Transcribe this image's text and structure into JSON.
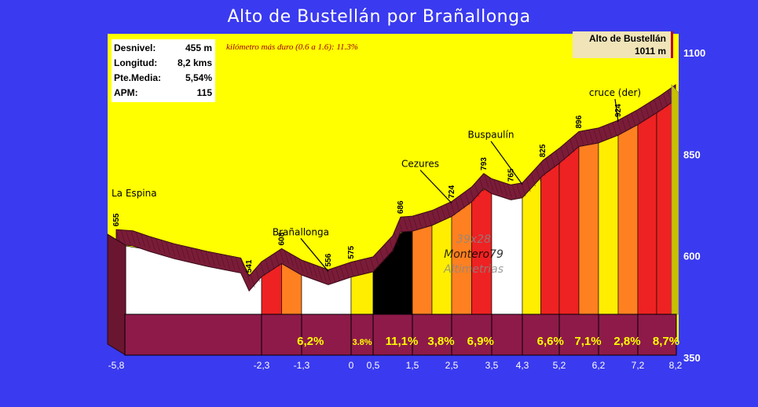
{
  "title": "Alto de Bustellán por Brañallonga",
  "stats": [
    {
      "label": "Desnivel:",
      "value": "455 m"
    },
    {
      "label": "Longitud:",
      "value": "8,2 kms"
    },
    {
      "label": "Pte.Media:",
      "value": "5,54%"
    },
    {
      "label": "APM:",
      "value": "115"
    }
  ],
  "hardest_km": "kilómetro más duro (0.6 a 1.6):   11.3%",
  "summit": {
    "name": "Alto de Bustellán",
    "elevation": "1011 m"
  },
  "watermark": [
    "39x28",
    "Montero79",
    "Altimetrias"
  ],
  "colors": {
    "background": "#3a3af0",
    "plot_area": "#ffff00",
    "road": "#7a1c38",
    "base_band": "#8e1a4a"
  },
  "chart_data": {
    "type": "area",
    "title": "Alto de Bustellán por Brañallonga",
    "xlabel": "",
    "ylabel": "",
    "x_ticks": [
      "-5,8",
      "-2,3",
      "-1,3",
      "0",
      "0,5",
      "1,5",
      "2,5",
      "3,5",
      "4,3",
      "5,2",
      "6,2",
      "7,2",
      "8,2"
    ],
    "y_ticks": [
      "350",
      "600",
      "850",
      "1100"
    ],
    "ylim": [
      350,
      1100
    ],
    "profile": [
      {
        "x": -5.8,
        "elev": 655
      },
      {
        "x": -5.4,
        "elev": 652
      },
      {
        "x": -5.0,
        "elev": 638
      },
      {
        "x": -4.4,
        "elev": 620
      },
      {
        "x": -3.6,
        "elev": 601
      },
      {
        "x": -2.8,
        "elev": 585
      },
      {
        "x": -2.6,
        "elev": 541
      },
      {
        "x": -2.3,
        "elev": 576
      },
      {
        "x": -1.8,
        "elev": 608
      },
      {
        "x": -1.3,
        "elev": 580
      },
      {
        "x": -0.6,
        "elev": 556
      },
      {
        "x": 0.0,
        "elev": 575
      },
      {
        "x": 0.5,
        "elev": 588
      },
      {
        "x": 1.0,
        "elev": 640
      },
      {
        "x": 1.2,
        "elev": 686
      },
      {
        "x": 1.5,
        "elev": 688
      },
      {
        "x": 2.0,
        "elev": 702
      },
      {
        "x": 2.5,
        "elev": 724
      },
      {
        "x": 3.0,
        "elev": 760
      },
      {
        "x": 3.3,
        "elev": 793
      },
      {
        "x": 3.5,
        "elev": 780
      },
      {
        "x": 4.0,
        "elev": 765
      },
      {
        "x": 4.3,
        "elev": 770
      },
      {
        "x": 4.8,
        "elev": 825
      },
      {
        "x": 5.2,
        "elev": 855
      },
      {
        "x": 5.7,
        "elev": 896
      },
      {
        "x": 6.2,
        "elev": 905
      },
      {
        "x": 6.7,
        "elev": 924
      },
      {
        "x": 7.2,
        "elev": 950
      },
      {
        "x": 7.8,
        "elev": 985
      },
      {
        "x": 8.2,
        "elev": 1011
      }
    ],
    "point_labels": [
      {
        "x": -5.8,
        "text": "655"
      },
      {
        "x": -2.6,
        "text": "541"
      },
      {
        "x": -1.8,
        "text": "608"
      },
      {
        "x": -0.6,
        "text": "556"
      },
      {
        "x": 0.0,
        "text": "575"
      },
      {
        "x": 1.2,
        "text": "686"
      },
      {
        "x": 2.5,
        "text": "724"
      },
      {
        "x": 3.3,
        "text": "793"
      },
      {
        "x": 4.0,
        "text": "765"
      },
      {
        "x": 4.8,
        "text": "825"
      },
      {
        "x": 5.7,
        "text": "896"
      },
      {
        "x": 6.7,
        "text": "924"
      }
    ],
    "segments": [
      {
        "x0": -5.8,
        "x1": -2.3,
        "grade": "",
        "color": "#ffffff"
      },
      {
        "x0": -2.3,
        "x1": -1.8,
        "grade": "",
        "color": "#ee2222"
      },
      {
        "x0": -1.8,
        "x1": -1.3,
        "grade": "6,2%",
        "color": "#ff8020"
      },
      {
        "x0": -1.3,
        "x1": 0.0,
        "grade": "",
        "color": "#ffffff"
      },
      {
        "x0": 0.0,
        "x1": 0.5,
        "grade": "3.8%",
        "color": "#ffee00"
      },
      {
        "x0": 0.5,
        "x1": 1.0,
        "grade": "11,1%",
        "color": "#000000"
      },
      {
        "x0": 1.0,
        "x1": 1.5,
        "grade": "",
        "color": "#000000"
      },
      {
        "x0": 1.5,
        "x1": 2.0,
        "grade": "3,8%",
        "color": "#ff8020"
      },
      {
        "x0": 2.0,
        "x1": 2.5,
        "grade": "",
        "color": "#ffee00"
      },
      {
        "x0": 2.5,
        "x1": 3.0,
        "grade": "6,9%",
        "color": "#ff8020"
      },
      {
        "x0": 3.0,
        "x1": 3.5,
        "grade": "",
        "color": "#ee2222"
      },
      {
        "x0": 3.5,
        "x1": 4.3,
        "grade": "",
        "color": "#ffffff"
      },
      {
        "x0": 4.3,
        "x1": 4.75,
        "grade": "6,6%",
        "color": "#ffee00"
      },
      {
        "x0": 4.75,
        "x1": 5.2,
        "grade": "",
        "color": "#ee2222"
      },
      {
        "x0": 5.2,
        "x1": 5.7,
        "grade": "7,1%",
        "color": "#ee2222"
      },
      {
        "x0": 5.7,
        "x1": 6.2,
        "grade": "",
        "color": "#ff8020"
      },
      {
        "x0": 6.2,
        "x1": 6.7,
        "grade": "2,8%",
        "color": "#ffee00"
      },
      {
        "x0": 6.7,
        "x1": 7.2,
        "grade": "",
        "color": "#ff8020"
      },
      {
        "x0": 7.2,
        "x1": 7.7,
        "grade": "8,7%",
        "color": "#ee2222"
      },
      {
        "x0": 7.7,
        "x1": 8.2,
        "grade": "",
        "color": "#ee2222"
      }
    ],
    "places": [
      {
        "name": "La Espina",
        "x": -5.8,
        "elev": 655
      },
      {
        "name": "Brañallonga",
        "x": -0.6,
        "elev": 556
      },
      {
        "name": "Cezures",
        "x": 2.5,
        "elev": 724
      },
      {
        "name": "Buspaulín",
        "x": 4.3,
        "elev": 770
      },
      {
        "name": "cruce (der)",
        "x": 6.7,
        "elev": 924
      }
    ]
  }
}
